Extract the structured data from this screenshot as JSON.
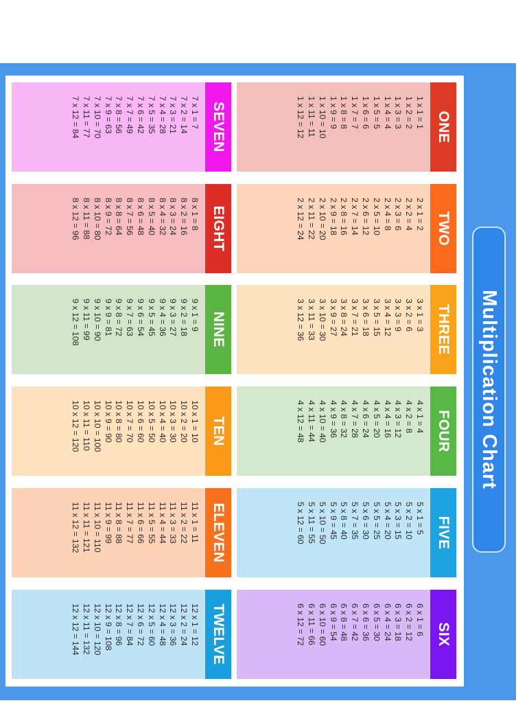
{
  "title": "Multiplication Chart",
  "colors": {
    "frame": "#4a98ec",
    "title_bg": "#2f86e8",
    "panel": "#ffffff"
  },
  "tables": [
    {
      "label": "ONE",
      "factor": 1,
      "header_color": "#dd3b28",
      "body_color": "#f3bfbb",
      "rows": [
        "1 x 1 = 1",
        "1 x 2 = 2",
        "1 x 3 = 3",
        "1 x 4 = 4",
        "1 x 5 = 5",
        "1 x 6 = 6",
        "1 x 7 = 7",
        "1 x 8 = 8",
        "1 x 9 = 9",
        "1 x 10 = 10",
        "1 x 11 = 11",
        "1 x 12 = 12"
      ]
    },
    {
      "label": "TWO",
      "factor": 2,
      "header_color": "#fa6a1e",
      "body_color": "#fdd5bb",
      "rows": [
        "2 x 1 = 2",
        "2 x 2 = 4",
        "2 x 3 = 6",
        "2 x 4 = 8",
        "2 x 5 = 10",
        "2 x 6 = 12",
        "2 x 7 = 14",
        "2 x 8 = 16",
        "2 x 9 = 18",
        "2 x 10 = 20",
        "2 x 11 = 22",
        "2 x 12 = 24"
      ]
    },
    {
      "label": "THREE",
      "factor": 3,
      "header_color": "#f9a31b",
      "body_color": "#fde2bf",
      "rows": [
        "3 x 1 = 3",
        "3 x 2 = 6",
        "3 x 3 = 9",
        "3 x 4 = 12",
        "3 x 5 = 15",
        "3 x 6 = 18",
        "3 x 7 = 21",
        "3 x 8 = 24",
        "3 x 9 = 27",
        "3 x 10 = 30",
        "3 x 11 = 33",
        "3 x 12 = 36"
      ]
    },
    {
      "label": "FOUR",
      "factor": 4,
      "header_color": "#58b846",
      "body_color": "#d3e8cc",
      "rows": [
        "4 x 1 = 4",
        "4 x 2 = 8",
        "4 x 3 = 12",
        "4 x 4 = 16",
        "4 x 5 = 20",
        "4 x 6 = 24",
        "4 x 7 = 28",
        "4 x 8 = 32",
        "4 x 9 = 36",
        "4 x 10 = 40",
        "4 x 11 = 44",
        "4 x 12 = 48"
      ]
    },
    {
      "label": "FIVE",
      "factor": 5,
      "header_color": "#1ea3e0",
      "body_color": "#bfe5f6",
      "rows": [
        "5 x 1 = 5",
        "5 x 2 = 10",
        "5 x 3 = 15",
        "5 x 4 = 20",
        "5 x 5 = 25",
        "5 x 6 = 30",
        "5 x 7 = 35",
        "5 x 8 = 40",
        "5 x 9 = 45",
        "5 x 10 = 50",
        "5 x 11 = 55",
        "5 x 12 = 60"
      ]
    },
    {
      "label": "SIX",
      "factor": 6,
      "header_color": "#7a16f0",
      "body_color": "#d8b8f6",
      "rows": [
        "6 x 1 = 6",
        "6 x 2 = 12",
        "6 x 3 = 18",
        "6 x 4 = 24",
        "6 x 5 = 30",
        "6 x 6 = 36",
        "6 x 7 = 42",
        "6 x 8 = 48",
        "6 x 9 = 54",
        "6 x 10 = 60",
        "6 x 11 = 66",
        "6 x 12 = 72"
      ]
    },
    {
      "label": "SEVEN",
      "factor": 7,
      "header_color": "#f018ec",
      "body_color": "#f8b6f6",
      "rows": [
        "7 x 1 = 7",
        "7 x 2 = 14",
        "7 x 3 = 21",
        "7 x 4 = 28",
        "7 x 5 = 35",
        "7 x 6 = 42",
        "7 x 7 = 49",
        "7 x 8 = 56",
        "7 x 9 = 63",
        "7 x 10 = 70",
        "7 x 11 = 77",
        "7 x 12 = 84"
      ]
    },
    {
      "label": "EIGHT",
      "factor": 8,
      "header_color": "#dd2d27",
      "body_color": "#f6bcc0",
      "rows": [
        "8 x 1 = 8",
        "8 x 2 = 16",
        "8 x 3 = 24",
        "8 x 4 = 32",
        "8 x 5 = 40",
        "8 x 6 = 48",
        "8 x 7 = 56",
        "8 x 8 = 64",
        "8 x 9 = 72",
        "8 x 10 = 80",
        "8 x 11 = 88",
        "8 x 12 = 96"
      ]
    },
    {
      "label": "NINE",
      "factor": 9,
      "header_color": "#5cb443",
      "body_color": "#d3e6c9",
      "rows": [
        "9 x 1 = 9",
        "9 x 2 = 18",
        "9 x 3 = 27",
        "9 x 4 = 36",
        "9 x 5 = 45",
        "9 x 6 = 54",
        "9 x 7 = 63",
        "9 x 8 = 72",
        "9 x 9 = 81",
        "9 x 10 = 90",
        "9 x 11 = 99",
        "9 x 12 = 108"
      ]
    },
    {
      "label": "TEN",
      "factor": 10,
      "header_color": "#f99a18",
      "body_color": "#fde2bd",
      "rows": [
        "10 x 1 = 10",
        "10 x 2 = 20",
        "10 x 3 = 30",
        "10 x 4 = 40",
        "10 x 5 = 50",
        "10 x 6 = 60",
        "10 x 7 = 70",
        "10 x 8 = 80",
        "10 x 9 = 90",
        "10 x 10 = 100",
        "10 x 11 = 110",
        "10 x 12 = 120"
      ]
    },
    {
      "label": "ELEVEN",
      "factor": 11,
      "header_color": "#f7701e",
      "body_color": "#fdd3b8",
      "rows": [
        "11 x 1 = 11",
        "11 x 2 = 22",
        "11 x 3 = 33",
        "11 x 4 = 44",
        "11 x 5 = 55",
        "11 x 6 = 66",
        "11 x 7 = 77",
        "11 x 8 = 88",
        "11 x 9 = 99",
        "11 x 10 = 110",
        "11 x 11 = 121",
        "11 x 12 = 132"
      ]
    },
    {
      "label": "TWELVE",
      "factor": 12,
      "header_color": "#1a9fde",
      "body_color": "#bde3f5",
      "rows": [
        "12 x 1 = 12",
        "12 x 2 = 24",
        "12 x 3 = 36",
        "12 x 4 = 48",
        "12 x 5 = 60",
        "12 x 6 = 72",
        "12 x 7 = 84",
        "12 x 8 = 96",
        "12 x 9 = 108",
        "12 x 10 = 120",
        "12 x 11 = 132",
        "12 x 12 = 144"
      ]
    }
  ]
}
